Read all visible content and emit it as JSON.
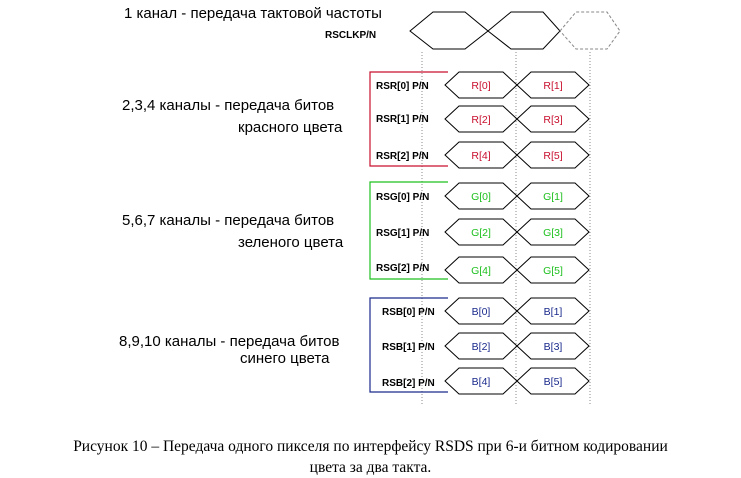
{
  "clock": {
    "description": "1 канал - передача тактовой частоты",
    "signal": "RSCLKP/N"
  },
  "groups": [
    {
      "desc_line1": "2,3,4  каналы - передача битов",
      "desc_line2": "красного цвета",
      "color": "#c8102e",
      "signals": [
        "RSR[0] P/N",
        "RSR[1] P/N",
        "RSR[2] P/N"
      ],
      "bits": [
        [
          "R[0]",
          "R[1]"
        ],
        [
          "R[2]",
          "R[3]"
        ],
        [
          "R[4]",
          "R[5]"
        ]
      ]
    },
    {
      "desc_line1": "5,6,7  каналы - передача битов",
      "desc_line2": "зеленого цвета",
      "color": "#1ec01e",
      "signals": [
        "RSG[0] P/N",
        "RSG[1] P/N",
        "RSG[2] P/N"
      ],
      "bits": [
        [
          "G[0]",
          "G[1]"
        ],
        [
          "G[2]",
          "G[3]"
        ],
        [
          "G[4]",
          "G[5]"
        ]
      ]
    },
    {
      "desc_line1": "8,9,10 каналы - передача битов",
      "desc_line2": "синего цвета",
      "color": "#1a2a8c",
      "signals": [
        "RSB[0] P/N",
        "RSB[1] P/N",
        "RSB[2] P/N"
      ],
      "bits": [
        [
          "B[0]",
          "B[1]"
        ],
        [
          "B[2]",
          "B[3]"
        ],
        [
          "B[4]",
          "B[5]"
        ]
      ]
    }
  ],
  "caption": {
    "line1": "Рисунок 10 – Передача одного пикселя по интерфейсу RSDS при 6-и битном кодировании",
    "line2": "цвета за два такта."
  }
}
